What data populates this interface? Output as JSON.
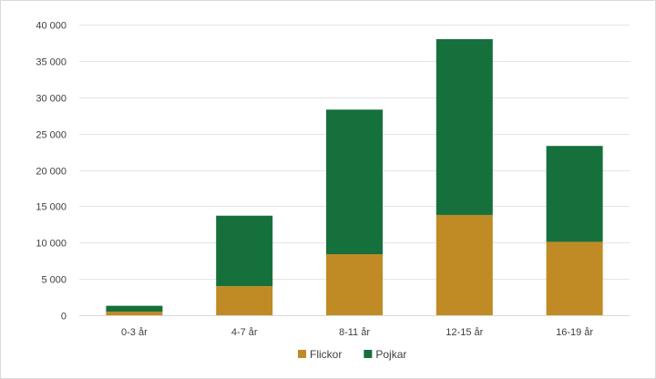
{
  "chart_data": {
    "type": "bar",
    "stacked": true,
    "categories": [
      "0-3 år",
      "4-7 år",
      "8-11 år",
      "12-15 år",
      "16-19 år"
    ],
    "series": [
      {
        "name": "Flickor",
        "color": "#C08B25",
        "values": [
          500,
          4000,
          8400,
          13800,
          10100
        ]
      },
      {
        "name": "Pojkar",
        "color": "#16703C",
        "values": [
          800,
          9700,
          19900,
          24200,
          13200
        ]
      }
    ],
    "ylim": [
      0,
      40000
    ],
    "yticks": [
      0,
      5000,
      10000,
      15000,
      20000,
      25000,
      30000,
      35000,
      40000
    ],
    "ytick_labels": [
      "0",
      "5 000",
      "10 000",
      "15 000",
      "20 000",
      "25 000",
      "30 000",
      "35 000",
      "40 000"
    ],
    "grid": true,
    "legend_position": "bottom"
  }
}
